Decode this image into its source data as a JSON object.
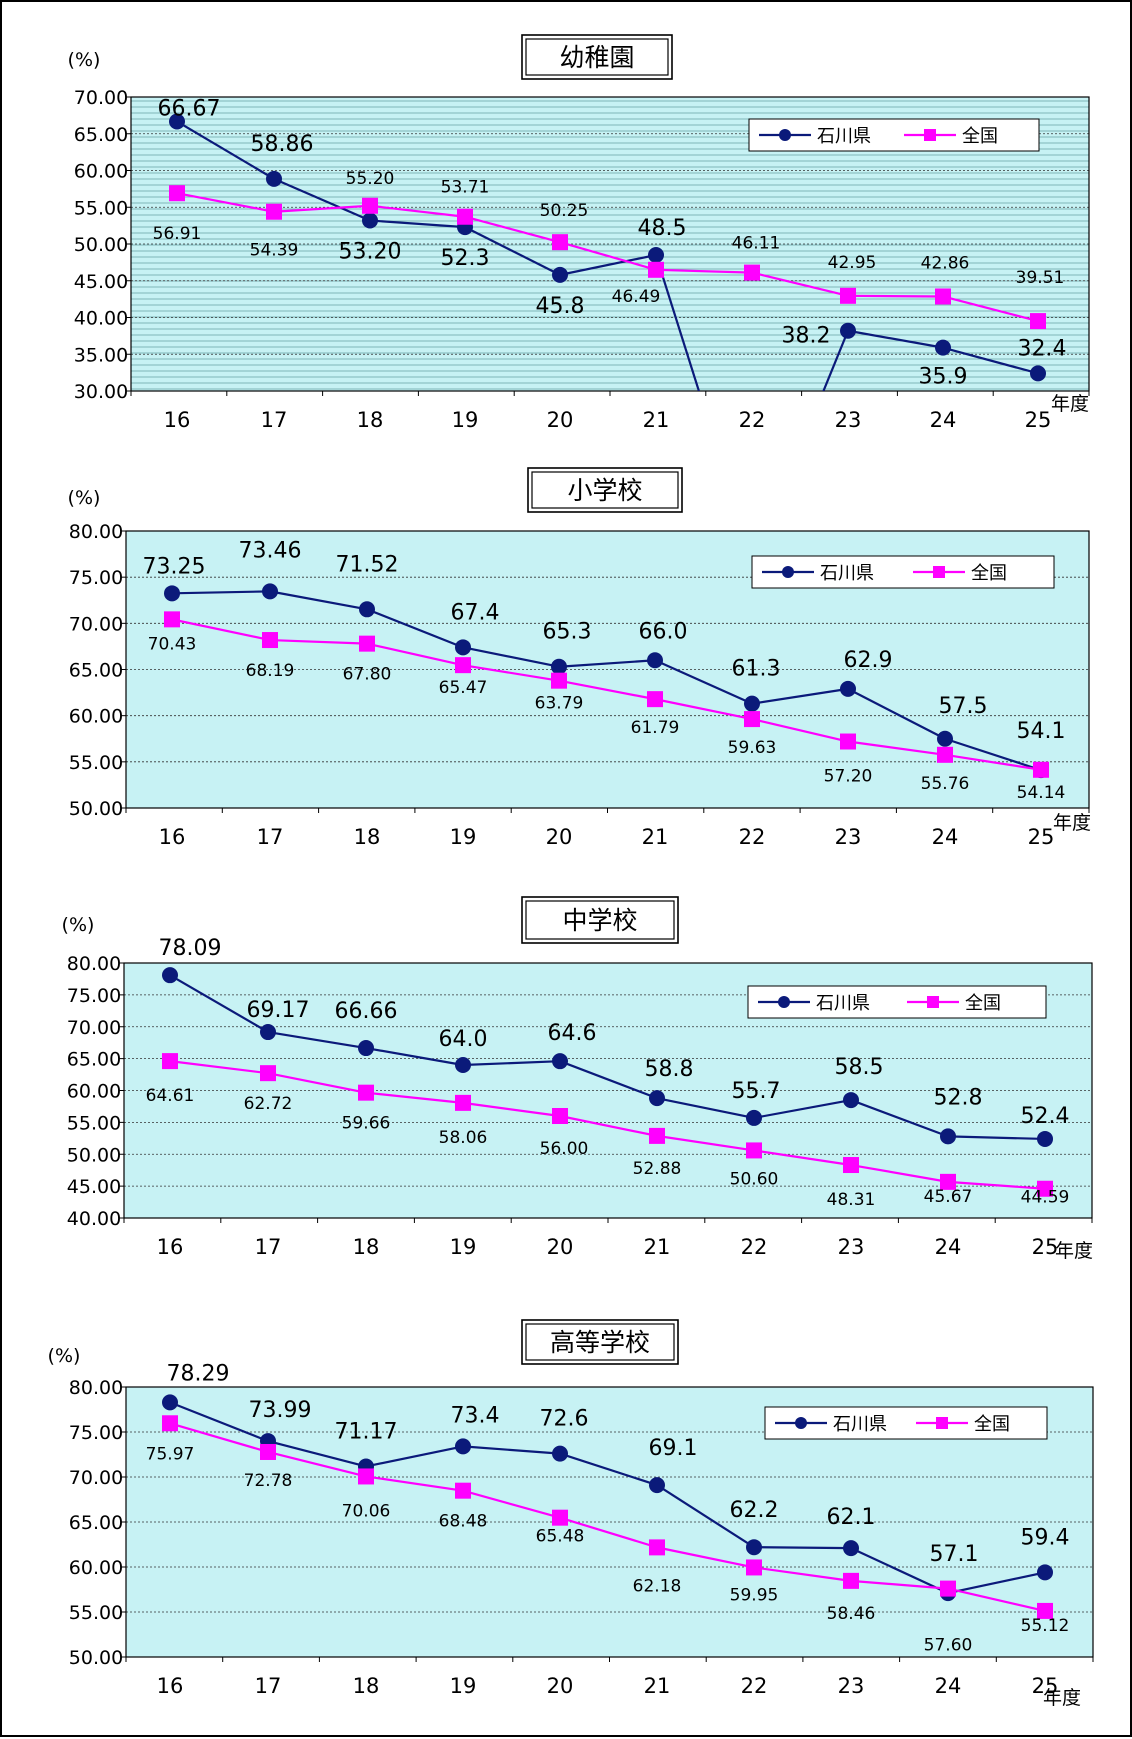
{
  "chart_data": [
    {
      "type": "line",
      "title": "幼稚園",
      "ylabel": "(%)",
      "xlabel": "年度",
      "categories": [
        "16",
        "17",
        "18",
        "19",
        "20",
        "21",
        "22",
        "23",
        "24",
        "25"
      ],
      "y_ticks": [
        "70.00",
        "65.00",
        "60.00",
        "55.00",
        "50.00",
        "45.00",
        "40.00",
        "35.00",
        "30.00"
      ],
      "ylim": [
        30,
        70
      ],
      "grid": true,
      "background": "striped",
      "legend_position": "top-right",
      "series": [
        {
          "name": "石川県",
          "color": "#0b1a7a",
          "marker": "circle",
          "values": [
            66.67,
            58.86,
            53.2,
            52.3,
            45.8,
            48.5,
            null,
            38.2,
            35.9,
            32.4
          ],
          "labels": [
            "66.67",
            "58.86",
            "53.20",
            "52.3",
            "45.8",
            "48.5",
            "",
            "38.2",
            "35.9",
            "32.4"
          ]
        },
        {
          "name": "全国",
          "color": "#ff00ff",
          "marker": "square",
          "values": [
            56.91,
            54.39,
            55.2,
            53.71,
            50.25,
            46.49,
            46.11,
            42.95,
            42.86,
            39.51
          ],
          "labels": [
            "56.91",
            "54.39",
            "55.20",
            "53.71",
            "50.25",
            "46.49",
            "46.11",
            "42.95",
            "42.86",
            "39.51"
          ]
        }
      ]
    },
    {
      "type": "line",
      "title": "小学校",
      "ylabel": "(%)",
      "xlabel": "年度",
      "categories": [
        "16",
        "17",
        "18",
        "19",
        "20",
        "21",
        "22",
        "23",
        "24",
        "25"
      ],
      "y_ticks": [
        "80.00",
        "75.00",
        "70.00",
        "65.00",
        "60.00",
        "55.00",
        "50.00"
      ],
      "ylim": [
        50,
        80
      ],
      "grid": true,
      "legend_position": "top-right",
      "series": [
        {
          "name": "石川県",
          "color": "#0b1a7a",
          "marker": "circle",
          "values": [
            73.25,
            73.46,
            71.52,
            67.4,
            65.3,
            66.0,
            61.3,
            62.9,
            57.5,
            54.1
          ],
          "labels": [
            "73.25",
            "73.46",
            "71.52",
            "67.4",
            "65.3",
            "66.0",
            "61.3",
            "62.9",
            "57.5",
            "54.1"
          ]
        },
        {
          "name": "全国",
          "color": "#ff00ff",
          "marker": "square",
          "values": [
            70.43,
            68.19,
            67.8,
            65.47,
            63.79,
            61.79,
            59.63,
            57.2,
            55.76,
            54.14
          ],
          "labels": [
            "70.43",
            "68.19",
            "67.80",
            "65.47",
            "63.79",
            "61.79",
            "59.63",
            "57.20",
            "55.76",
            "54.14"
          ]
        }
      ]
    },
    {
      "type": "line",
      "title": "中学校",
      "ylabel": "(%)",
      "xlabel": "年度",
      "categories": [
        "16",
        "17",
        "18",
        "19",
        "20",
        "21",
        "22",
        "23",
        "24",
        "25"
      ],
      "y_ticks": [
        "80.00",
        "75.00",
        "70.00",
        "65.00",
        "60.00",
        "55.00",
        "50.00",
        "45.00",
        "40.00"
      ],
      "ylim": [
        40,
        80
      ],
      "grid": true,
      "legend_position": "top-right",
      "series": [
        {
          "name": "石川県",
          "color": "#0b1a7a",
          "marker": "circle",
          "values": [
            78.09,
            69.17,
            66.66,
            64.0,
            64.6,
            58.8,
            55.7,
            58.5,
            52.8,
            52.4
          ],
          "labels": [
            "78.09",
            "69.17",
            "66.66",
            "64.0",
            "64.6",
            "58.8",
            "55.7",
            "58.5",
            "52.8",
            "52.4"
          ]
        },
        {
          "name": "全国",
          "color": "#ff00ff",
          "marker": "square",
          "values": [
            64.61,
            62.72,
            59.66,
            58.06,
            56.0,
            52.88,
            50.6,
            48.31,
            45.67,
            44.59
          ],
          "labels": [
            "64.61",
            "62.72",
            "59.66",
            "58.06",
            "56.00",
            "52.88",
            "50.60",
            "48.31",
            "45.67",
            "44.59"
          ]
        }
      ]
    },
    {
      "type": "line",
      "title": "高等学校",
      "ylabel": "(%)",
      "xlabel": "年度",
      "categories": [
        "16",
        "17",
        "18",
        "19",
        "20",
        "21",
        "22",
        "23",
        "24",
        "25"
      ],
      "y_ticks": [
        "80.00",
        "75.00",
        "70.00",
        "65.00",
        "60.00",
        "55.00",
        "50.00"
      ],
      "ylim": [
        50,
        80
      ],
      "grid": true,
      "legend_position": "top-right",
      "series": [
        {
          "name": "石川県",
          "color": "#0b1a7a",
          "marker": "circle",
          "values": [
            78.29,
            73.99,
            71.17,
            73.4,
            72.6,
            69.1,
            62.2,
            62.1,
            57.1,
            59.4
          ],
          "labels": [
            "78.29",
            "73.99",
            "71.17",
            "73.4",
            "72.6",
            "69.1",
            "62.2",
            "62.1",
            "57.1",
            "59.4"
          ]
        },
        {
          "name": "全国",
          "color": "#ff00ff",
          "marker": "square",
          "values": [
            75.97,
            72.78,
            70.06,
            68.48,
            65.48,
            62.18,
            59.95,
            58.46,
            57.6,
            55.12
          ],
          "labels": [
            "75.97",
            "72.78",
            "70.06",
            "68.48",
            "65.48",
            "62.18",
            "59.95",
            "58.46",
            "57.60",
            "55.12"
          ]
        }
      ]
    }
  ]
}
